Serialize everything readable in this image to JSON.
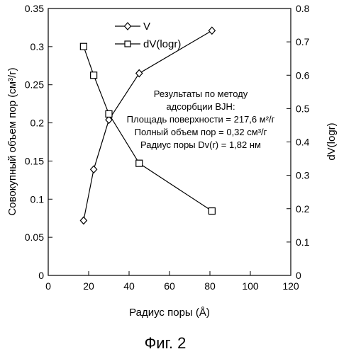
{
  "chart_data": {
    "type": "line",
    "xlabel": "Радиус поры (Å)",
    "ylabel_left": "Совокупный объем пор (см³/г)",
    "ylabel_right": "dV(logr)",
    "xlim": [
      0,
      120
    ],
    "ylim_left": [
      0,
      0.35
    ],
    "ylim_right": [
      0,
      0.8
    ],
    "x_ticks": [
      "0",
      "20",
      "40",
      "60",
      "80",
      "100",
      "120"
    ],
    "y_left_ticks": [
      "0",
      "0.05",
      "0.1",
      "0.15",
      "0.2",
      "0.25",
      "0.3",
      "0.35"
    ],
    "y_right_ticks": [
      "0",
      "0.1",
      "0.2",
      "0.3",
      "0.4",
      "0.5",
      "0.6",
      "0.7",
      "0.8"
    ],
    "grid": false,
    "legend_position": "top-center",
    "series": [
      {
        "name": "V",
        "axis": "left",
        "marker": "diamond",
        "x": [
          17.5,
          22.5,
          30,
          45,
          81
        ],
        "y": [
          0.072,
          0.139,
          0.204,
          0.265,
          0.321
        ]
      },
      {
        "name": "dV(logr)",
        "axis": "right",
        "marker": "square",
        "x": [
          17.5,
          22.5,
          30,
          45,
          81
        ],
        "y": [
          0.686,
          0.6,
          0.484,
          0.336,
          0.193
        ]
      }
    ],
    "annotation": [
      "Результаты по методу",
      "адсорбции BJH:",
      "Площадь поверхности = 217,6 м²/г",
      "Полный объем пор = 0,32 см³/г",
      "Радиус поры Dv(r) = 1,82 нм"
    ]
  },
  "figure_caption": "Фиг. 2"
}
